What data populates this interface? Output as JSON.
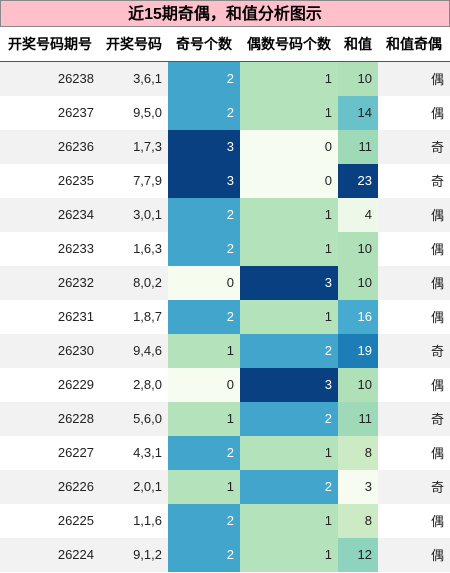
{
  "title": "近15期奇偶，和值分析图示",
  "table": {
    "headers": [
      "开奖号码期号",
      "开奖号码",
      "奇号个数",
      "偶数号码个数",
      "和值",
      "和值奇偶"
    ],
    "rows": [
      [
        26238,
        "3,6,1",
        2,
        1,
        10,
        "偶"
      ],
      [
        26237,
        "9,5,0",
        2,
        1,
        14,
        "偶"
      ],
      [
        26236,
        "1,7,3",
        3,
        0,
        11,
        "奇"
      ],
      [
        26235,
        "7,7,9",
        3,
        0,
        23,
        "奇"
      ],
      [
        26234,
        "3,0,1",
        2,
        1,
        4,
        "偶"
      ],
      [
        26233,
        "1,6,3",
        2,
        1,
        10,
        "偶"
      ],
      [
        26232,
        "8,0,2",
        0,
        3,
        10,
        "偶"
      ],
      [
        26231,
        "1,8,7",
        2,
        1,
        16,
        "偶"
      ],
      [
        26230,
        "9,4,6",
        1,
        2,
        19,
        "奇"
      ],
      [
        26229,
        "2,8,0",
        0,
        3,
        10,
        "偶"
      ],
      [
        26228,
        "5,6,0",
        1,
        2,
        11,
        "奇"
      ],
      [
        26227,
        "4,3,1",
        2,
        1,
        8,
        "偶"
      ],
      [
        26226,
        "2,0,1",
        1,
        2,
        3,
        "奇"
      ],
      [
        26225,
        "1,1,6",
        2,
        1,
        8,
        "偶"
      ],
      [
        26224,
        "9,1,2",
        2,
        1,
        12,
        "偶"
      ]
    ]
  }
}
